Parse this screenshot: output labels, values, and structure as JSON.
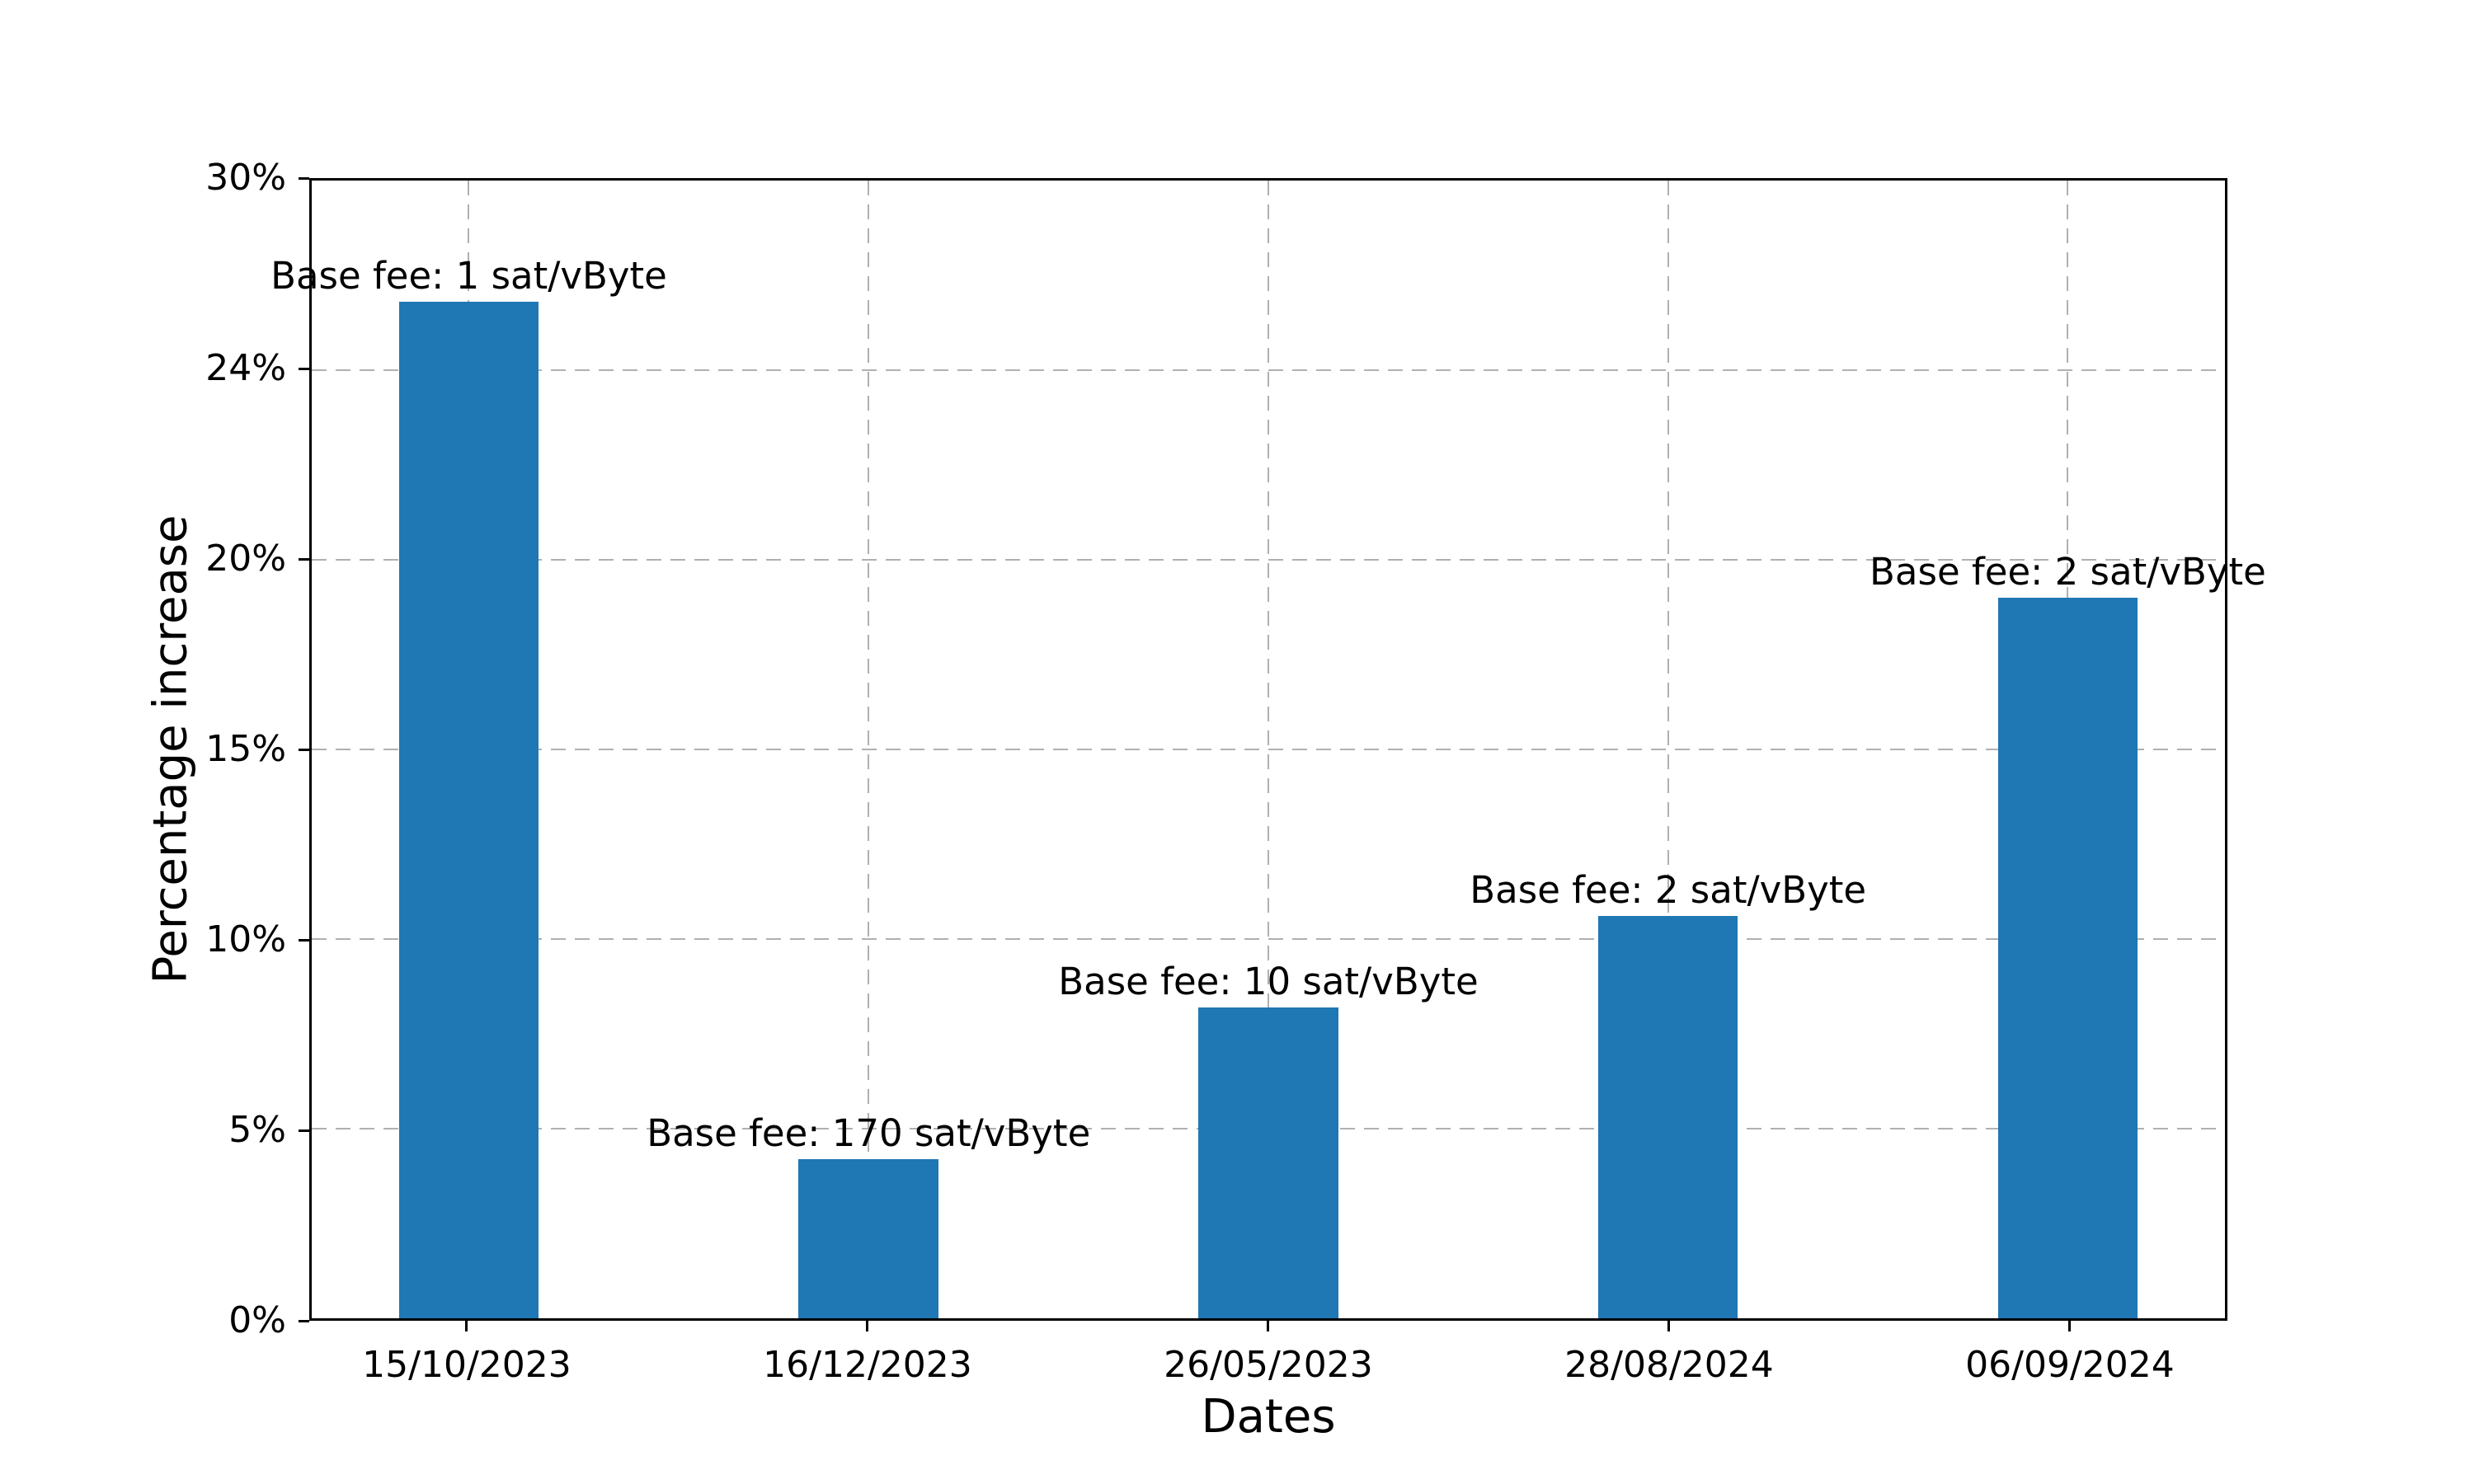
{
  "chart_data": {
    "type": "bar",
    "title": "",
    "xlabel": "Dates",
    "ylabel": "Percentage increase",
    "categories": [
      "15/10/2023",
      "16/12/2023",
      "26/05/2023",
      "28/08/2024",
      "06/09/2024"
    ],
    "values": [
      26.8,
      4.2,
      8.2,
      10.6,
      19.0
    ],
    "bar_labels": [
      "Base fee: 1 sat/vByte",
      "Base fee: 170 sat/vByte",
      "Base fee: 10 sat/vByte",
      "Base fee: 2 sat/vByte",
      "Base fee: 2 sat/vByte"
    ],
    "ylim": [
      0,
      30
    ],
    "ytick_labels": [
      "0%",
      "5%",
      "10%",
      "15%",
      "20%",
      "24%",
      "30%"
    ],
    "grid": "dashed, horizontal at y-ticks and vertical at bar centers, drawn behind bars",
    "legend_position": "none",
    "bar_color": "#1f77b4"
  },
  "colors": {
    "bar": "#1f77b4",
    "grid": "#b0b0b0",
    "axis": "#000000",
    "background": "#ffffff"
  }
}
